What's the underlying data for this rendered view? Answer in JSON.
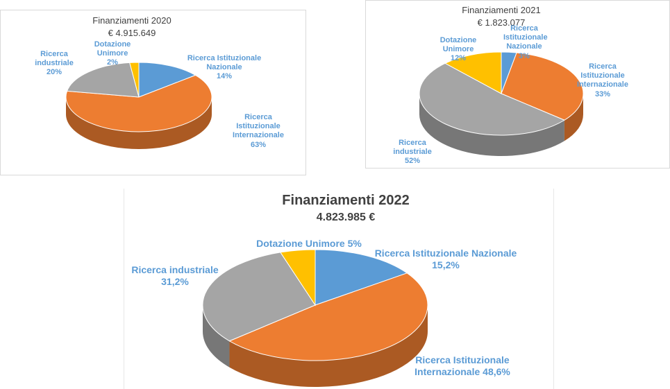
{
  "chart_data": [
    {
      "type": "pie",
      "title": "Finanziamenti 2020",
      "subtitle": "€ 4.915.649",
      "categories": [
        "Ricerca Istituzionale Nazionale",
        "Ricerca Istituzionale Internazionale",
        "Ricerca industriale",
        "Dotazione Unimore"
      ],
      "values": [
        14,
        63,
        20,
        2
      ],
      "value_labels": [
        "14%",
        "63%",
        "20%",
        "2%"
      ],
      "colors": [
        "#5b9bd5",
        "#ed7d31",
        "#a5a5a5",
        "#ffc000"
      ]
    },
    {
      "type": "pie",
      "title": "Finanziamenti 2021",
      "subtitle": "€ 1.823.077",
      "categories": [
        "Ricerca Istituzionale Nazionale",
        "Ricerca Istituzionale Internazionale",
        "Ricerca industriale",
        "Dotazione Unimore"
      ],
      "values": [
        3,
        33,
        52,
        12
      ],
      "value_labels": [
        "3%",
        "33%",
        "52%",
        "12%"
      ],
      "colors": [
        "#5b9bd5",
        "#ed7d31",
        "#a5a5a5",
        "#ffc000"
      ]
    },
    {
      "type": "pie",
      "title": "Finanziamenti 2022",
      "subtitle": "4.823.985 €",
      "categories": [
        "Ricerca Istituzionale  Nazionale",
        "Ricerca Istituzionale Internazionale",
        "Ricerca industriale",
        "Dotazione Unimore"
      ],
      "values": [
        15.2,
        48.6,
        31.2,
        5
      ],
      "value_labels": [
        "15,2%",
        "48,6%",
        "31,2%",
        "5%"
      ],
      "colors": [
        "#5b9bd5",
        "#ed7d31",
        "#a5a5a5",
        "#ffc000"
      ]
    }
  ]
}
